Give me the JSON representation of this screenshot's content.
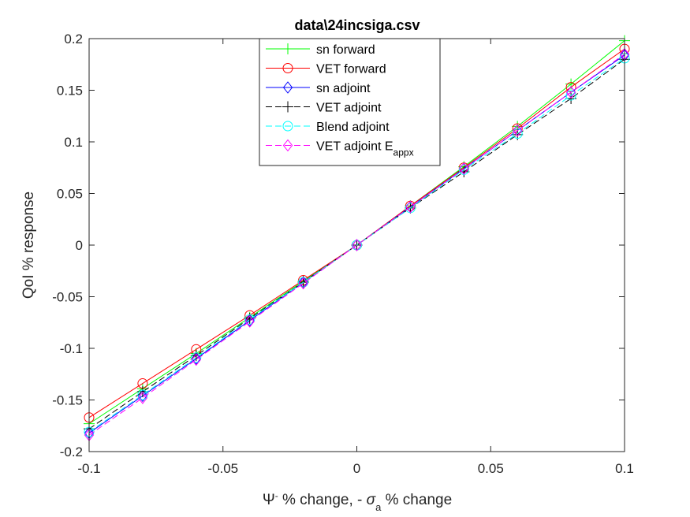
{
  "chart_data": {
    "type": "line",
    "title": "data\\24incsiga.csv",
    "xlabel": {
      "main": "Ψ",
      "sup": "-",
      "mid": " % change, - ",
      "sigma": "σ",
      "sub": "a",
      "end": " % change"
    },
    "ylabel": "QoI % response",
    "xlim": [
      -0.1,
      0.1
    ],
    "ylim": [
      -0.2,
      0.2
    ],
    "xticks": [
      -0.1,
      -0.05,
      0,
      0.05,
      0.1
    ],
    "xtick_labels": [
      "-0.1",
      "-0.05",
      "0",
      "0.05",
      "0.1"
    ],
    "yticks": [
      -0.2,
      -0.15,
      -0.1,
      -0.05,
      0,
      0.05,
      0.1,
      0.15,
      0.2
    ],
    "ytick_labels": [
      "-0.2",
      "-0.15",
      "-0.1",
      "-0.05",
      "0",
      "0.05",
      "0.1",
      "0.15",
      "0.2"
    ],
    "grid": false,
    "legend_position": "top-center",
    "x": [
      -0.1,
      -0.08,
      -0.06,
      -0.04,
      -0.02,
      0,
      0.02,
      0.04,
      0.06,
      0.08,
      0.1
    ],
    "series": [
      {
        "name": "sn forward",
        "color": "#00ff00",
        "dash": "solid",
        "marker": "plus",
        "values": [
          -0.173,
          -0.139,
          -0.105,
          -0.07,
          -0.035,
          0,
          0.038,
          0.076,
          0.115,
          0.156,
          0.198
        ]
      },
      {
        "name": "VET forward",
        "color": "#ff0000",
        "dash": "solid",
        "marker": "circle",
        "values": [
          -0.167,
          -0.134,
          -0.101,
          -0.068,
          -0.034,
          0,
          0.038,
          0.075,
          0.113,
          0.153,
          0.19
        ]
      },
      {
        "name": "sn adjoint",
        "color": "#0000ff",
        "dash": "solid",
        "marker": "diamond",
        "values": [
          -0.182,
          -0.146,
          -0.11,
          -0.073,
          -0.036,
          0,
          0.037,
          0.074,
          0.111,
          0.148,
          0.184
        ]
      },
      {
        "name": "VET adjoint",
        "color": "#000000",
        "dash": "dashed",
        "marker": "plus",
        "values": [
          -0.178,
          -0.142,
          -0.107,
          -0.071,
          -0.036,
          0,
          0.036,
          0.071,
          0.107,
          0.142,
          0.18
        ]
      },
      {
        "name": "Blend adjoint",
        "color": "#00ffff",
        "dash": "dashed",
        "marker": "circle",
        "values": [
          -0.181,
          -0.145,
          -0.109,
          -0.072,
          -0.036,
          0,
          0.036,
          0.073,
          0.108,
          0.145,
          0.181
        ]
      },
      {
        "name": "VET adjoint E",
        "name_sub": "appx",
        "color": "#ff00ff",
        "dash": "dashed",
        "marker": "diamond",
        "values": [
          -0.184,
          -0.148,
          -0.111,
          -0.074,
          -0.037,
          0,
          0.037,
          0.074,
          0.111,
          0.148,
          0.185
        ]
      }
    ]
  }
}
